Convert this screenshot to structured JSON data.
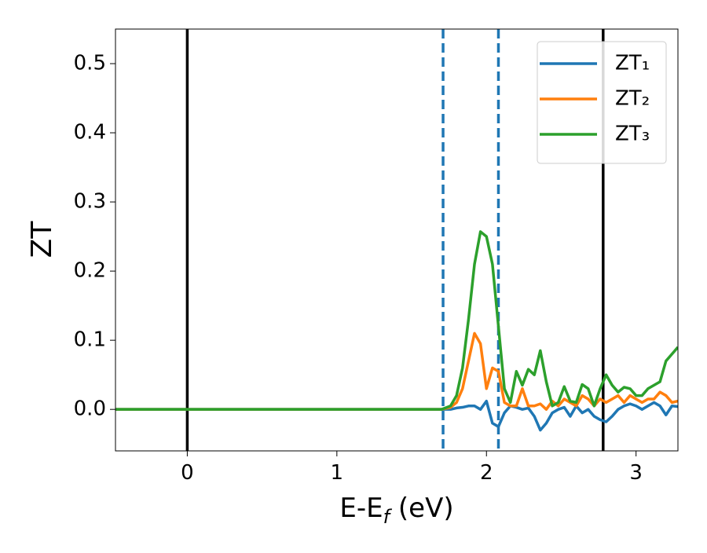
{
  "chart_data": {
    "type": "line",
    "xlabel": [
      "E-E",
      "f",
      " (eV)"
    ],
    "ylabel": "ZT",
    "x": [
      -0.48,
      0,
      0.5,
      1,
      1.5,
      1.7,
      1.76,
      1.8,
      1.84,
      1.88,
      1.92,
      1.96,
      2.0,
      2.04,
      2.08,
      2.12,
      2.16,
      2.2,
      2.24,
      2.28,
      2.32,
      2.36,
      2.4,
      2.44,
      2.48,
      2.52,
      2.56,
      2.6,
      2.64,
      2.68,
      2.72,
      2.76,
      2.8,
      2.84,
      2.88,
      2.92,
      2.96,
      3.0,
      3.04,
      3.08,
      3.12,
      3.16,
      3.2,
      3.24,
      3.28
    ],
    "series": [
      {
        "name": "ZT₁",
        "color": "#1f77b4",
        "values": [
          0,
          0,
          0,
          0,
          0,
          0,
          0,
          0.002,
          0.003,
          0.005,
          0.005,
          0,
          0.012,
          -0.02,
          -0.025,
          -0.005,
          0.005,
          0.003,
          0,
          0.002,
          -0.01,
          -0.03,
          -0.02,
          -0.005,
          0,
          0.003,
          -0.01,
          0.005,
          -0.005,
          0,
          -0.01,
          -0.015,
          -0.018,
          -0.01,
          0,
          0.005,
          0.008,
          0.005,
          0,
          0.005,
          0.01,
          0.005,
          -0.008,
          0.005,
          0.004
        ]
      },
      {
        "name": "ZT₂",
        "color": "#ff7f0e",
        "values": [
          0,
          0,
          0,
          0,
          0,
          0,
          0.003,
          0.01,
          0.03,
          0.07,
          0.11,
          0.095,
          0.03,
          0.06,
          0.055,
          0.01,
          0.005,
          0.005,
          0.03,
          0.005,
          0.005,
          0.008,
          0,
          0.012,
          0.005,
          0.015,
          0.01,
          0.005,
          0.02,
          0.015,
          0.005,
          0.015,
          0.01,
          0.015,
          0.02,
          0.01,
          0.02,
          0.015,
          0.01,
          0.015,
          0.015,
          0.025,
          0.02,
          0.01,
          0.012
        ]
      },
      {
        "name": "ZT₃",
        "color": "#2ca02c",
        "values": [
          0,
          0,
          0,
          0,
          0,
          0,
          0.005,
          0.02,
          0.06,
          0.13,
          0.21,
          0.257,
          0.25,
          0.21,
          0.12,
          0.03,
          0.01,
          0.055,
          0.035,
          0.058,
          0.05,
          0.085,
          0.04,
          0.005,
          0.01,
          0.033,
          0.012,
          0.01,
          0.036,
          0.03,
          0.005,
          0.03,
          0.05,
          0.035,
          0.025,
          0.032,
          0.03,
          0.02,
          0.02,
          0.03,
          0.035,
          0.04,
          0.07,
          0.08,
          0.09
        ]
      }
    ],
    "vlines": [
      {
        "x": 0,
        "color": "#000000",
        "style": "solid"
      },
      {
        "x": 2.78,
        "color": "#000000",
        "style": "solid"
      },
      {
        "x": 1.71,
        "color": "#1f77b4",
        "style": "dashed"
      },
      {
        "x": 2.08,
        "color": "#1f77b4",
        "style": "dashed"
      }
    ],
    "xlim": [
      -0.48,
      3.28
    ],
    "xticks": [
      0,
      1,
      2,
      3
    ],
    "ylim": [
      -0.06,
      0.55
    ],
    "yticks": [
      {
        "value": 0,
        "label": "0.0"
      },
      {
        "value": 0.1,
        "label": "0.1"
      },
      {
        "value": 0.2,
        "label": "0.2"
      },
      {
        "value": 0.3,
        "label": "0.3"
      },
      {
        "value": 0.4,
        "label": "0.4"
      },
      {
        "value": 0.5,
        "label": "0.5"
      }
    ],
    "legend": "upper right",
    "grid": false
  }
}
